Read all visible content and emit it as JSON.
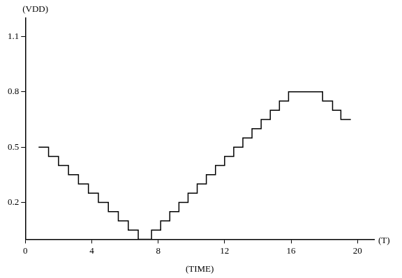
{
  "chart_data": {
    "type": "line",
    "y_label": "(VDD)",
    "x_label": "(TIME)",
    "x_unit_label": "(T)",
    "x": [
      0.8,
      1.4,
      2.0,
      2.6,
      3.2,
      3.8,
      4.4,
      5.0,
      5.6,
      6.2,
      6.8,
      7.6,
      8.15,
      8.7,
      9.25,
      9.8,
      10.35,
      10.9,
      11.45,
      12.0,
      12.55,
      13.1,
      13.65,
      14.2,
      14.75,
      15.3,
      15.85,
      17.9,
      18.5,
      19.0,
      19.6
    ],
    "values": [
      0.5,
      0.45,
      0.4,
      0.35,
      0.3,
      0.25,
      0.2,
      0.15,
      0.1,
      0.05,
      0,
      0.05,
      0.1,
      0.15,
      0.2,
      0.25,
      0.3,
      0.35,
      0.4,
      0.45,
      0.5,
      0.55,
      0.6,
      0.65,
      0.7,
      0.75,
      0.8,
      0.75,
      0.7,
      0.65,
      0.65
    ],
    "color": "#000000",
    "line_style": "stepped",
    "xlim": [
      0,
      21
    ],
    "xticks": [
      0,
      4,
      8,
      12,
      16,
      20
    ],
    "ylim": [
      0,
      1.2
    ],
    "yticks": [
      0.2,
      0.5,
      0.8,
      1.1
    ],
    "grid": false
  }
}
